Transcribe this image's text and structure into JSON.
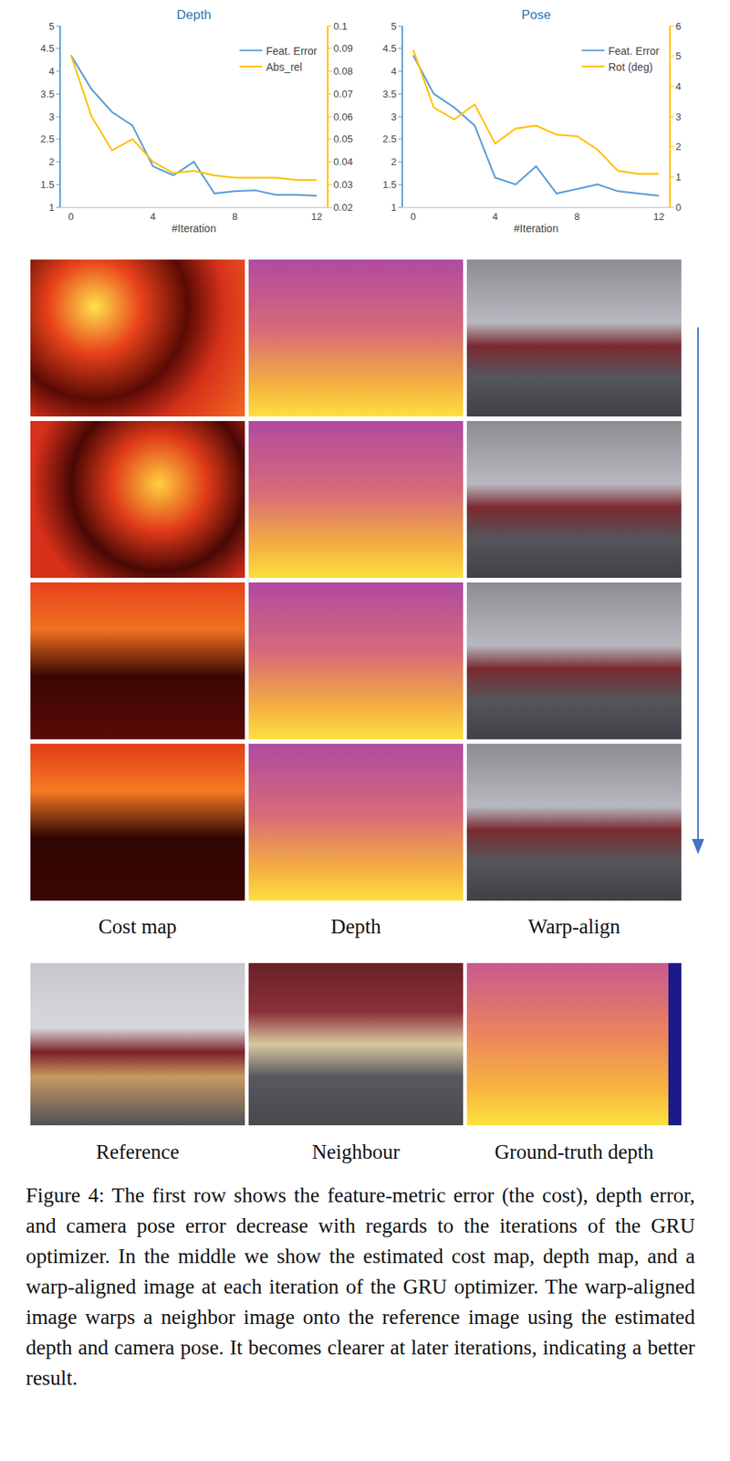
{
  "chart_data": [
    {
      "type": "line",
      "title": "Depth",
      "x_label": "#Iteration",
      "x": [
        0,
        1,
        2,
        3,
        4,
        5,
        6,
        7,
        8,
        9,
        10,
        11,
        12
      ],
      "xlim": [
        -0.5,
        12.5
      ],
      "xticks": [
        0,
        4,
        8,
        12
      ],
      "ylim": [
        1,
        5
      ],
      "yticks": [
        1,
        1.5,
        2,
        2.5,
        3,
        3.5,
        4,
        4.5,
        5
      ],
      "y2lim": [
        0.02,
        0.1
      ],
      "y2ticks": [
        0.02,
        0.03,
        0.04,
        0.05,
        0.06,
        0.07,
        0.08,
        0.09,
        0.1
      ],
      "grid": false,
      "legend": "upper right",
      "series": [
        {
          "name": "Feat. Error",
          "color": "#5b9bd5",
          "values": [
            4.35,
            3.6,
            3.1,
            2.8,
            1.9,
            1.7,
            2.0,
            1.3,
            1.35,
            1.37,
            1.27,
            1.27,
            1.25
          ]
        },
        {
          "name": "Abs_rel",
          "color": "#ffc000",
          "axis": "y2",
          "values": [
            0.087,
            0.06,
            0.045,
            0.05,
            0.04,
            0.035,
            0.036,
            0.034,
            0.033,
            0.033,
            0.033,
            0.032,
            0.032
          ]
        }
      ]
    },
    {
      "type": "line",
      "title": "Pose",
      "x_label": "#Iteration",
      "x": [
        0,
        1,
        2,
        3,
        4,
        5,
        6,
        7,
        8,
        9,
        10,
        11,
        12
      ],
      "xlim": [
        -0.5,
        12.5
      ],
      "xticks": [
        0,
        4,
        8,
        12
      ],
      "ylim": [
        1,
        5
      ],
      "yticks": [
        1,
        1.5,
        2,
        2.5,
        3,
        3.5,
        4,
        4.5,
        5
      ],
      "y2lim": [
        0,
        6
      ],
      "y2ticks": [
        0,
        1,
        2,
        3,
        4,
        5,
        6
      ],
      "grid": false,
      "legend": "upper right",
      "series": [
        {
          "name": "Feat. Error",
          "color": "#5b9bd5",
          "values": [
            4.35,
            3.5,
            3.2,
            2.8,
            1.65,
            1.5,
            1.9,
            1.3,
            1.4,
            1.5,
            1.35,
            1.3,
            1.25
          ]
        },
        {
          "name": "Rot (deg)",
          "color": "#ffc000",
          "axis": "y2",
          "values": [
            5.2,
            3.3,
            2.9,
            3.4,
            2.1,
            2.6,
            2.7,
            2.4,
            2.35,
            1.9,
            1.2,
            1.1,
            1.1
          ]
        }
      ]
    }
  ],
  "figure": {
    "column_labels": [
      "Cost map",
      "Depth",
      "Warp-align"
    ],
    "bottom_labels": [
      "Reference",
      "Neighbour",
      "Ground-truth depth"
    ],
    "caption": "Figure 4: The first row shows the feature-metric error (the cost), depth error, and camera pose error decrease with regards to the iterations of the GRU optimizer. In the middle we show the estimated cost map, depth map, and a warp-aligned image at each iteration of the GRU optimizer. The warp-aligned image warps a neighbor image onto the reference image using the estimated depth and camera pose. It becomes clearer at later iterations, indicating a better result."
  }
}
